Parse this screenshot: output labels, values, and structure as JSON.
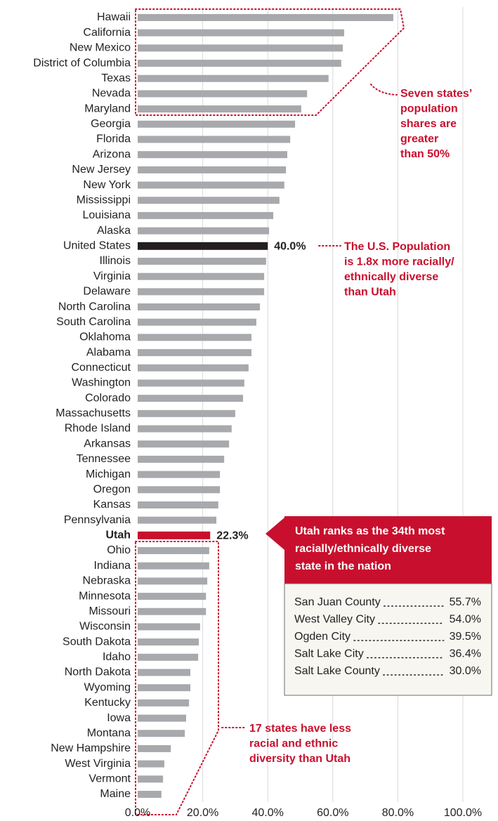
{
  "chart_data": {
    "type": "bar",
    "orientation": "horizontal",
    "categories": [
      "Hawaii",
      "California",
      "New Mexico",
      "District of Columbia",
      "Texas",
      "Nevada",
      "Maryland",
      "Georgia",
      "Florida",
      "Arizona",
      "New Jersey",
      "New York",
      "Mississippi",
      "Louisiana",
      "Alaska",
      "United States",
      "Illinois",
      "Virginia",
      "Delaware",
      "North Carolina",
      "South Carolina",
      "Oklahoma",
      "Alabama",
      "Connecticut",
      "Washington",
      "Colorado",
      "Massachusetts",
      "Rhode Island",
      "Arkansas",
      "Tennessee",
      "Michigan",
      "Oregon",
      "Kansas",
      "Pennsylvania",
      "Utah",
      "Ohio",
      "Indiana",
      "Nebraska",
      "Minnesota",
      "Missouri",
      "Wisconsin",
      "South Dakota",
      "Idaho",
      "North Dakota",
      "Wyoming",
      "Kentucky",
      "Iowa",
      "Montana",
      "New Hampshire",
      "West Virginia",
      "Vermont",
      "Maine"
    ],
    "values": [
      78.6,
      63.5,
      63.1,
      62.6,
      58.7,
      52.1,
      50.3,
      48.4,
      46.9,
      46.0,
      45.6,
      45.1,
      43.6,
      41.7,
      40.4,
      40.0,
      39.5,
      38.9,
      38.9,
      37.6,
      36.5,
      35.0,
      35.0,
      34.1,
      32.8,
      32.4,
      30.0,
      28.9,
      28.1,
      26.6,
      25.3,
      25.3,
      24.8,
      24.2,
      22.3,
      22.0,
      22.0,
      21.4,
      21.0,
      21.0,
      19.2,
      18.8,
      18.6,
      16.2,
      16.2,
      15.8,
      14.9,
      14.5,
      10.2,
      8.2,
      7.8,
      7.3
    ],
    "value_labels": [
      null,
      null,
      null,
      null,
      null,
      null,
      null,
      null,
      null,
      null,
      null,
      null,
      null,
      null,
      null,
      "40.0%",
      null,
      null,
      null,
      null,
      null,
      null,
      null,
      null,
      null,
      null,
      null,
      null,
      null,
      null,
      null,
      null,
      null,
      null,
      "22.3%",
      null,
      null,
      null,
      null,
      null,
      null,
      null,
      null,
      null,
      null,
      null,
      null,
      null,
      null,
      null,
      null,
      null
    ],
    "colors": [
      "#a7a9ac",
      "#a7a9ac",
      "#a7a9ac",
      "#a7a9ac",
      "#a7a9ac",
      "#a7a9ac",
      "#a7a9ac",
      "#a7a9ac",
      "#a7a9ac",
      "#a7a9ac",
      "#a7a9ac",
      "#a7a9ac",
      "#a7a9ac",
      "#a7a9ac",
      "#a7a9ac",
      "#231f20",
      "#a7a9ac",
      "#a7a9ac",
      "#a7a9ac",
      "#a7a9ac",
      "#a7a9ac",
      "#a7a9ac",
      "#a7a9ac",
      "#a7a9ac",
      "#a7a9ac",
      "#a7a9ac",
      "#a7a9ac",
      "#a7a9ac",
      "#a7a9ac",
      "#a7a9ac",
      "#a7a9ac",
      "#a7a9ac",
      "#a7a9ac",
      "#a7a9ac",
      "#c8102e",
      "#a7a9ac",
      "#a7a9ac",
      "#a7a9ac",
      "#a7a9ac",
      "#a7a9ac",
      "#a7a9ac",
      "#a7a9ac",
      "#a7a9ac",
      "#a7a9ac",
      "#a7a9ac",
      "#a7a9ac",
      "#a7a9ac",
      "#a7a9ac",
      "#a7a9ac",
      "#a7a9ac",
      "#a7a9ac",
      "#a7a9ac"
    ],
    "xlim": [
      0,
      100
    ],
    "xticks": [
      {
        "value": 0,
        "label": "0.0%"
      },
      {
        "value": 20,
        "label": "20.0%"
      },
      {
        "value": 40,
        "label": "40.0%"
      },
      {
        "value": 60,
        "label": "60.0%"
      },
      {
        "value": 80,
        "label": "80.0%"
      },
      {
        "value": 100,
        "label": "100.0%"
      }
    ],
    "grid": true,
    "annotations": [
      {
        "lines": [
          "Seven states’",
          "population",
          "shares are",
          "greater",
          "than 50%"
        ]
      },
      {
        "lines": [
          "The U.S. Population",
          "is 1.8x more racially/",
          "ethnically diverse",
          "than Utah"
        ]
      },
      {
        "lines": [
          "17 states have less",
          "racial and ethnic",
          "diversity than Utah"
        ]
      }
    ],
    "callout": {
      "color": "#c8102e",
      "lines": [
        "Utah ranks as the 34th most",
        "racially/ethnically diverse",
        "state in the nation"
      ]
    },
    "table": {
      "rows": [
        [
          "San Juan County",
          "55.7%"
        ],
        [
          "West Valley City",
          "54.0%"
        ],
        [
          "Ogden City",
          "39.5%"
        ],
        [
          "Salt Lake City",
          "36.4%"
        ],
        [
          "Salt Lake County",
          "30.0%"
        ]
      ]
    }
  }
}
